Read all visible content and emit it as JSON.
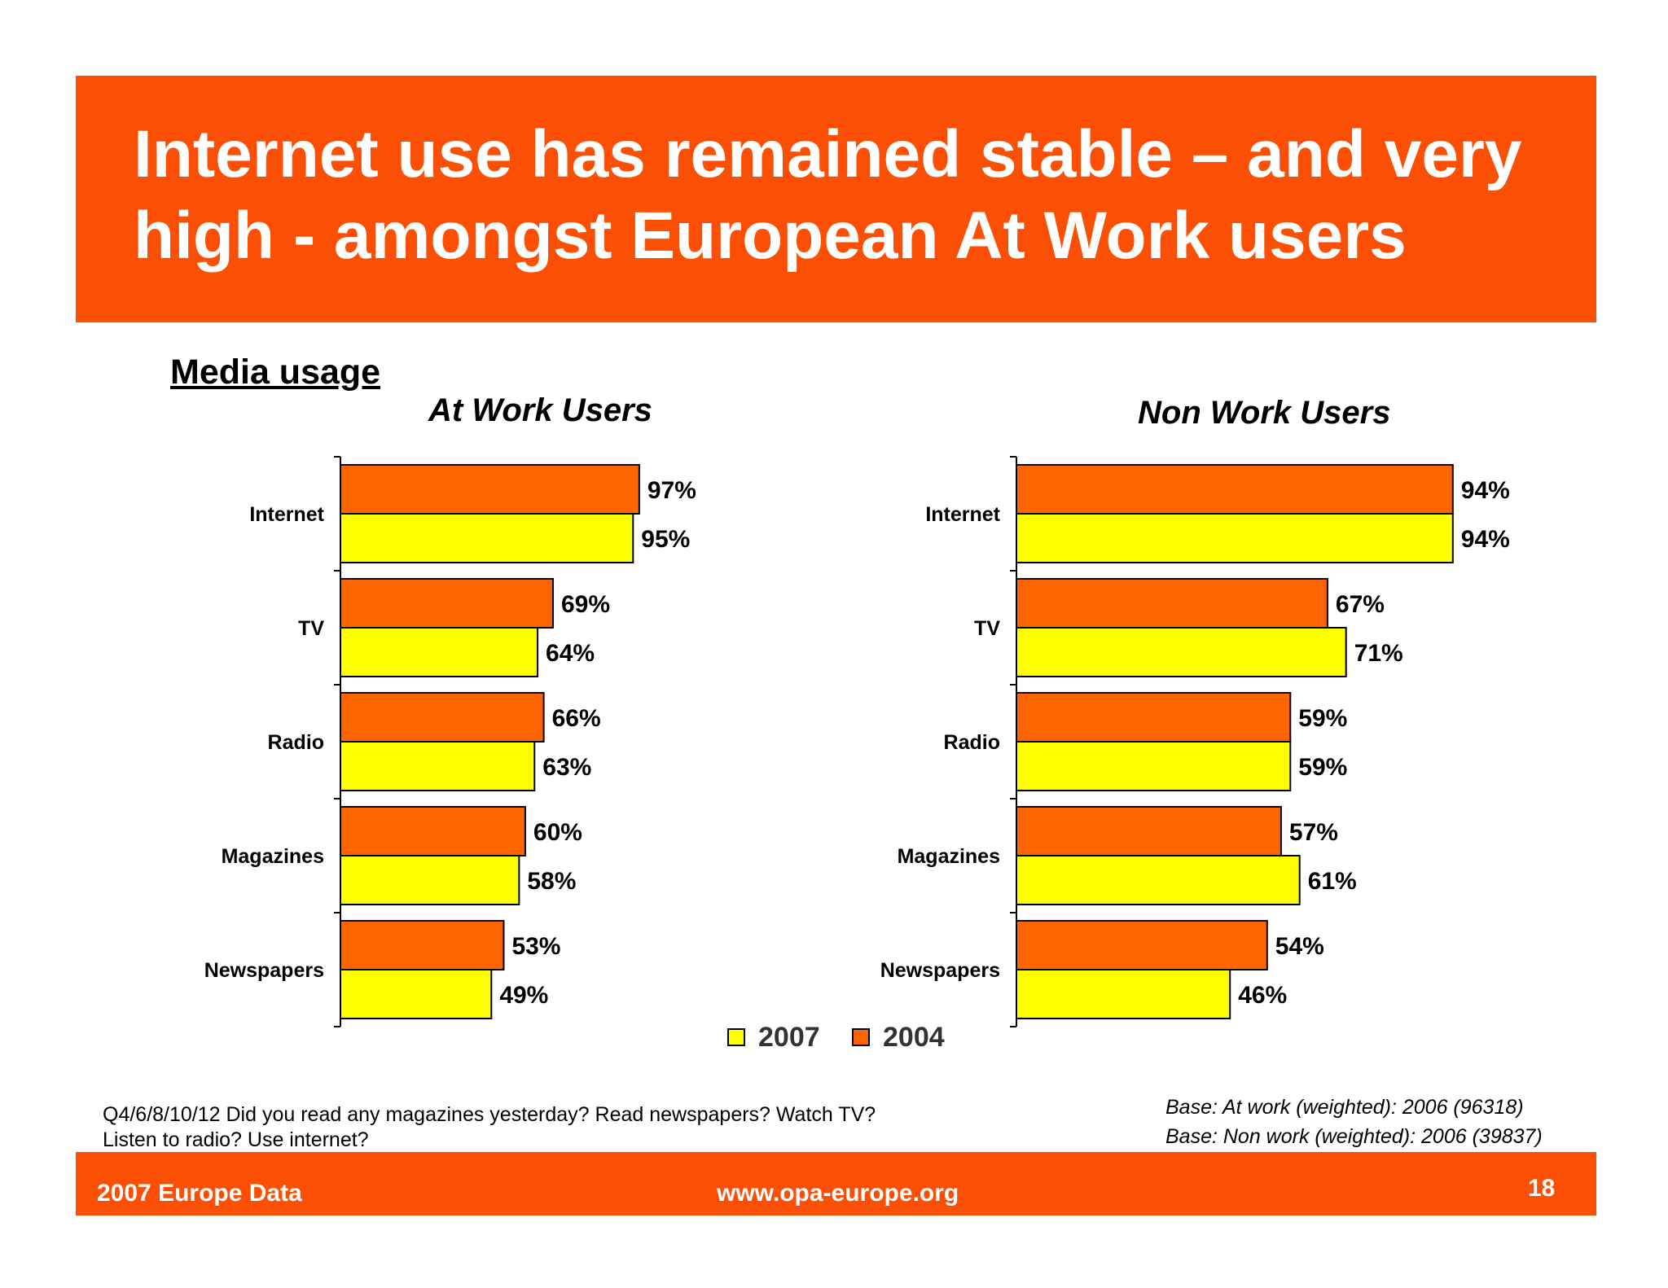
{
  "slide": {
    "title": "Internet use has remained stable – and very high - amongst European At Work users",
    "section_heading": "Media usage"
  },
  "colors": {
    "brand_orange": "#fa4f04",
    "bar_2004": "#fe6400",
    "bar_2007": "#ffff00"
  },
  "legend": {
    "items": [
      {
        "label": "2007",
        "color": "#ffff00"
      },
      {
        "label": "2004",
        "color": "#fe6400"
      }
    ]
  },
  "chart_data": [
    {
      "type": "bar",
      "orientation": "horizontal",
      "title": "At Work Users",
      "categories": [
        "Internet",
        "TV",
        "Radio",
        "Magazines",
        "Newspapers"
      ],
      "series": [
        {
          "name": "2004",
          "values": [
            97,
            69,
            66,
            60,
            53
          ],
          "labels": [
            "97%",
            "69%",
            "66%",
            "60%",
            "53%"
          ]
        },
        {
          "name": "2007",
          "values": [
            95,
            64,
            63,
            58,
            49
          ],
          "labels": [
            "95%",
            "64%",
            "63%",
            "58%",
            "49%"
          ]
        }
      ],
      "xlim": [
        0,
        100
      ],
      "grid": false
    },
    {
      "type": "bar",
      "orientation": "horizontal",
      "title": "Non Work Users",
      "categories": [
        "Internet",
        "TV",
        "Radio",
        "Magazines",
        "Newspapers"
      ],
      "series": [
        {
          "name": "2004",
          "values": [
            94,
            67,
            59,
            57,
            54
          ],
          "labels": [
            "94%",
            "67%",
            "59%",
            "57%",
            "54%"
          ]
        },
        {
          "name": "2007",
          "values": [
            94,
            71,
            59,
            61,
            46
          ],
          "labels": [
            "94%",
            "71%",
            "59%",
            "61%",
            "46%"
          ]
        }
      ],
      "xlim": [
        0,
        100
      ],
      "grid": false
    }
  ],
  "notes": {
    "question": "Q4/6/8/10/12 Did you read any magazines yesterday? Read newspapers? Watch TV? Listen to radio? Use internet?",
    "base_at_work": "Base: At work (weighted): 2006  (96318)",
    "base_non_work": "Base: Non work (weighted): 2006 (39837)"
  },
  "footer": {
    "left": "2007 Europe Data",
    "center": "www.opa-europe.org",
    "page_number": "18"
  }
}
